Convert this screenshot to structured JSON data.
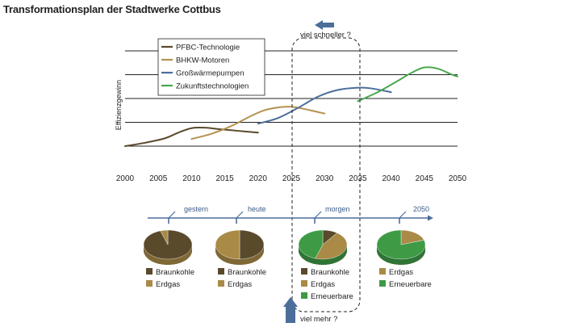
{
  "title": "Transformationsplan der Stadtwerke Cottbus",
  "colors": {
    "pfbc": "#5a4a2c",
    "bhkw": "#b39350",
    "gwp": "#4b6e9a",
    "zukunft": "#48a84e",
    "timeline": "#4b6e9a",
    "braunkohle": "#5a4a2c",
    "erdgas": "#a98a46",
    "erneuerbare": "#3f9a46"
  },
  "chart_data": {
    "type": "line",
    "title": "Transformationsplan der Stadtwerke Cottbus",
    "xlabel": "",
    "ylabel": "Effizienzgewinn",
    "xlim": [
      2000,
      2050
    ],
    "ylim": [
      0,
      5
    ],
    "x_ticks": [
      "2000",
      "2005",
      "2010",
      "2015",
      "2020",
      "2025",
      "2030",
      "2035",
      "2040",
      "2045",
      "2050"
    ],
    "grid": "horizontal",
    "legend_position": "top-left",
    "series": [
      {
        "name": "PFBC-Technologie",
        "color_key": "pfbc",
        "points": [
          [
            2000,
            0.0
          ],
          [
            2003,
            0.15
          ],
          [
            2006,
            0.35
          ],
          [
            2008,
            0.6
          ],
          [
            2010,
            0.8
          ],
          [
            2012,
            0.82
          ],
          [
            2014,
            0.76
          ],
          [
            2017,
            0.68
          ],
          [
            2020,
            0.6
          ]
        ]
      },
      {
        "name": "BHKW-Motoren",
        "color_key": "bhkw",
        "points": [
          [
            2010,
            0.32
          ],
          [
            2013,
            0.55
          ],
          [
            2016,
            0.9
          ],
          [
            2019,
            1.35
          ],
          [
            2021,
            1.6
          ],
          [
            2023,
            1.72
          ],
          [
            2025,
            1.75
          ],
          [
            2027,
            1.65
          ],
          [
            2030,
            1.45
          ]
        ]
      },
      {
        "name": "Großwärmepumpen",
        "color_key": "gwp",
        "points": [
          [
            2020,
            1.0
          ],
          [
            2023,
            1.25
          ],
          [
            2026,
            1.7
          ],
          [
            2029,
            2.2
          ],
          [
            2032,
            2.5
          ],
          [
            2035,
            2.6
          ],
          [
            2037,
            2.57
          ],
          [
            2040,
            2.4
          ]
        ]
      },
      {
        "name": "Zukunftstechnologien",
        "color_key": "zukunft",
        "points": [
          [
            2035,
            2.0
          ],
          [
            2038,
            2.4
          ],
          [
            2041,
            2.9
          ],
          [
            2043,
            3.25
          ],
          [
            2045,
            3.5
          ],
          [
            2047,
            3.45
          ],
          [
            2049,
            3.2
          ],
          [
            2050,
            3.1
          ]
        ]
      }
    ],
    "annotations": {
      "top": "viel schneller ?",
      "bottom": "viel mehr ?"
    }
  },
  "timeline": [
    {
      "label": "gestern"
    },
    {
      "label": "heute"
    },
    {
      "label": "morgen"
    },
    {
      "label": "2050"
    }
  ],
  "pies": [
    {
      "slices": [
        {
          "name": "Braunkohle",
          "value": 95,
          "color_key": "braunkohle"
        },
        {
          "name": "Erdgas",
          "value": 5,
          "color_key": "erdgas"
        }
      ],
      "legend": [
        "Braunkohle",
        "Erdgas"
      ]
    },
    {
      "slices": [
        {
          "name": "Braunkohle",
          "value": 50,
          "color_key": "braunkohle"
        },
        {
          "name": "Erdgas",
          "value": 50,
          "color_key": "erdgas"
        }
      ],
      "legend": [
        "Braunkohle",
        "Erdgas"
      ]
    },
    {
      "slices": [
        {
          "name": "Braunkohle",
          "value": 10,
          "color_key": "braunkohle"
        },
        {
          "name": "Erdgas",
          "value": 45,
          "color_key": "erdgas"
        },
        {
          "name": "Erneuerbare",
          "value": 45,
          "color_key": "erneuerbare"
        }
      ],
      "legend": [
        "Braunkohle",
        "Erdgas",
        "Erneuerbare"
      ]
    },
    {
      "slices": [
        {
          "name": "Erdgas",
          "value": 20,
          "color_key": "erdgas"
        },
        {
          "name": "Erneuerbare",
          "value": 80,
          "color_key": "erneuerbare"
        }
      ],
      "legend": [
        "Erdgas",
        "Erneuerbare"
      ]
    }
  ]
}
